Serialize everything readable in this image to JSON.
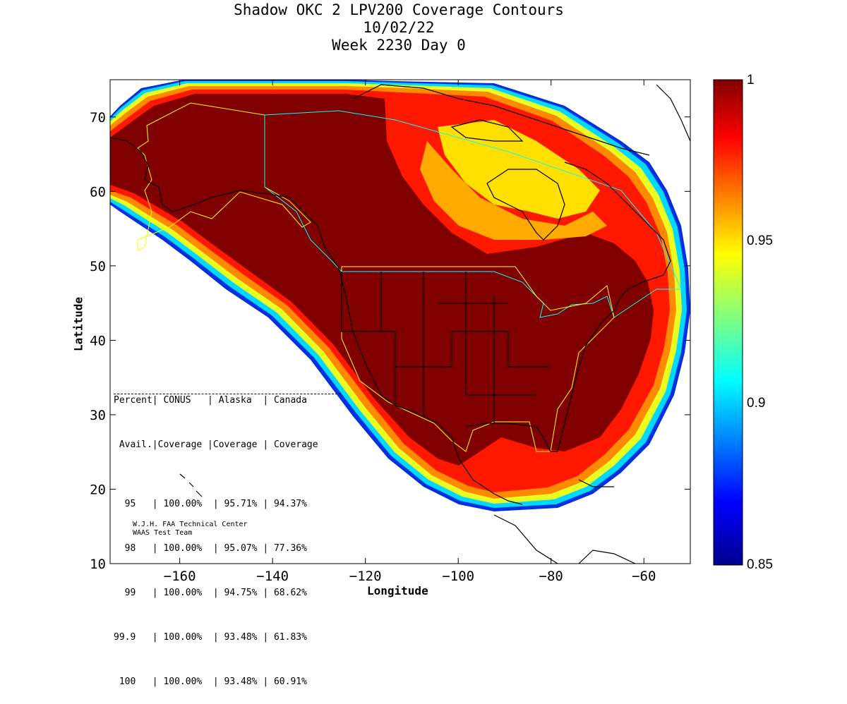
{
  "title": {
    "line1": "Shadow OKC 2 LPV200 Coverage Contours",
    "line2": "10/02/22",
    "line3": "Week 2230 Day 0"
  },
  "axes": {
    "xlabel": "Longitude",
    "ylabel": "Latitude",
    "xlim": [
      -175,
      -50
    ],
    "ylim": [
      10,
      75
    ],
    "xticks": [
      -160,
      -140,
      -120,
      -100,
      -80,
      -60
    ],
    "yticks": [
      10,
      20,
      30,
      40,
      50,
      60,
      70
    ]
  },
  "colorbar": {
    "ticks": [
      "1",
      "0.95",
      "0.9",
      "0.85"
    ],
    "range": [
      0.85,
      1
    ],
    "colormap": "jet"
  },
  "stats_table": {
    "header1": "Percent| CONUS   | Alaska  | Canada",
    "header2": " Avail.|Coverage |Coverage | Coverage",
    "rows": [
      "  95   | 100.00%  | 95.71% | 94.37%",
      "  98   | 100.00%  | 95.07% | 77.36%",
      "  99   | 100.00%  | 94.75% | 68.62%",
      "99.9   | 100.00%  | 93.48% | 61.83%",
      " 100   | 100.00%  | 93.48% | 60.91%"
    ]
  },
  "credit": {
    "line1": "W.J.H. FAA Technical Center",
    "line2": "WAAS Test Team"
  },
  "colors": {
    "max_coverage": "#800000",
    "red": "#ff1a00",
    "orange": "#ff8c00",
    "yellow": "#ffe000",
    "cyan": "#00e0ff",
    "blue": "#0050ff",
    "navy": "#00008f",
    "boundary_yellow": "#ffff00",
    "boundary_cyan": "#00ffff"
  }
}
